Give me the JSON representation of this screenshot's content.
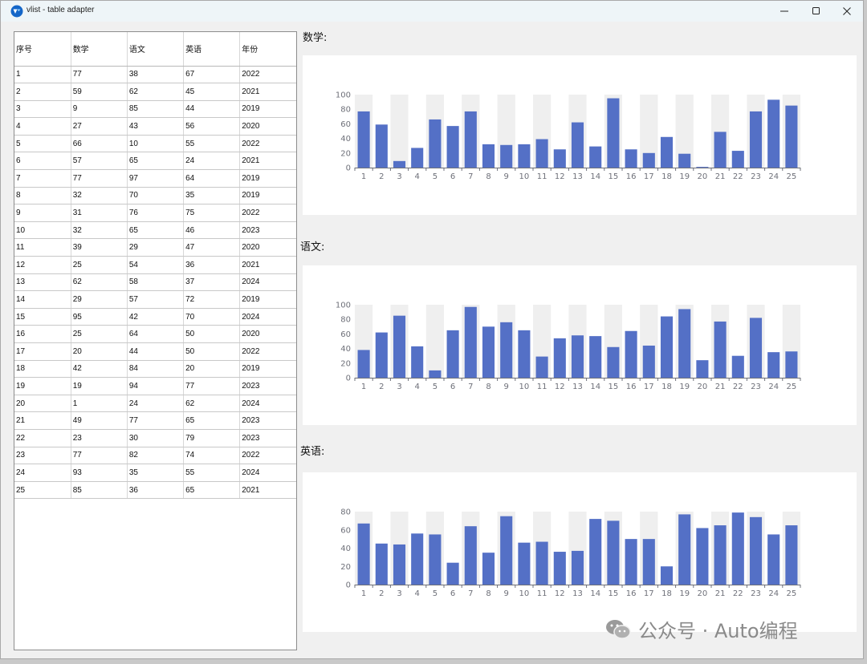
{
  "window": {
    "title": "vlist - table adapter"
  },
  "table": {
    "headers": [
      "序号",
      "数学",
      "语文",
      "英语",
      "年份"
    ],
    "rows": [
      [
        "1",
        "77",
        "38",
        "67",
        "2022"
      ],
      [
        "2",
        "59",
        "62",
        "45",
        "2021"
      ],
      [
        "3",
        "9",
        "85",
        "44",
        "2019"
      ],
      [
        "4",
        "27",
        "43",
        "56",
        "2020"
      ],
      [
        "5",
        "66",
        "10",
        "55",
        "2022"
      ],
      [
        "6",
        "57",
        "65",
        "24",
        "2021"
      ],
      [
        "7",
        "77",
        "97",
        "64",
        "2019"
      ],
      [
        "8",
        "32",
        "70",
        "35",
        "2019"
      ],
      [
        "9",
        "31",
        "76",
        "75",
        "2022"
      ],
      [
        "10",
        "32",
        "65",
        "46",
        "2023"
      ],
      [
        "11",
        "39",
        "29",
        "47",
        "2020"
      ],
      [
        "12",
        "25",
        "54",
        "36",
        "2021"
      ],
      [
        "13",
        "62",
        "58",
        "37",
        "2024"
      ],
      [
        "14",
        "29",
        "57",
        "72",
        "2019"
      ],
      [
        "15",
        "95",
        "42",
        "70",
        "2024"
      ],
      [
        "16",
        "25",
        "64",
        "50",
        "2020"
      ],
      [
        "17",
        "20",
        "44",
        "50",
        "2022"
      ],
      [
        "18",
        "42",
        "84",
        "20",
        "2019"
      ],
      [
        "19",
        "19",
        "94",
        "77",
        "2023"
      ],
      [
        "20",
        "1",
        "24",
        "62",
        "2024"
      ],
      [
        "21",
        "49",
        "77",
        "65",
        "2023"
      ],
      [
        "22",
        "23",
        "30",
        "79",
        "2023"
      ],
      [
        "23",
        "77",
        "82",
        "74",
        "2022"
      ],
      [
        "24",
        "93",
        "35",
        "55",
        "2024"
      ],
      [
        "25",
        "85",
        "36",
        "65",
        "2021"
      ]
    ]
  },
  "charts": {
    "math_label": "数学:",
    "chinese_label": "语文:",
    "english_label": "英语:"
  },
  "watermark": {
    "text": "公众号 · Auto编程"
  },
  "colors": {
    "bar": "#5470c6",
    "band": "#efefef",
    "axis": "#6e7079"
  },
  "chart_data": [
    {
      "type": "bar",
      "categories": [
        "1",
        "2",
        "3",
        "4",
        "5",
        "6",
        "7",
        "8",
        "9",
        "10",
        "11",
        "12",
        "13",
        "14",
        "15",
        "16",
        "17",
        "18",
        "19",
        "20",
        "21",
        "22",
        "23",
        "24",
        "25"
      ],
      "values": [
        77,
        59,
        9,
        27,
        66,
        57,
        77,
        32,
        31,
        32,
        39,
        25,
        62,
        29,
        95,
        25,
        20,
        42,
        19,
        1,
        49,
        23,
        77,
        93,
        85
      ],
      "ylim": [
        0,
        100
      ],
      "yticks": [
        0,
        20,
        40,
        60,
        80,
        100
      ]
    },
    {
      "type": "bar",
      "categories": [
        "1",
        "2",
        "3",
        "4",
        "5",
        "6",
        "7",
        "8",
        "9",
        "10",
        "11",
        "12",
        "13",
        "14",
        "15",
        "16",
        "17",
        "18",
        "19",
        "20",
        "21",
        "22",
        "23",
        "24",
        "25"
      ],
      "values": [
        38,
        62,
        85,
        43,
        10,
        65,
        97,
        70,
        76,
        65,
        29,
        54,
        58,
        57,
        42,
        64,
        44,
        84,
        94,
        24,
        77,
        30,
        82,
        35,
        36
      ],
      "ylim": [
        0,
        100
      ],
      "yticks": [
        0,
        20,
        40,
        60,
        80,
        100
      ]
    },
    {
      "type": "bar",
      "categories": [
        "1",
        "2",
        "3",
        "4",
        "5",
        "6",
        "7",
        "8",
        "9",
        "10",
        "11",
        "12",
        "13",
        "14",
        "15",
        "16",
        "17",
        "18",
        "19",
        "20",
        "21",
        "22",
        "23",
        "24",
        "25"
      ],
      "values": [
        67,
        45,
        44,
        56,
        55,
        24,
        64,
        35,
        75,
        46,
        47,
        36,
        37,
        72,
        70,
        50,
        50,
        20,
        77,
        62,
        65,
        79,
        74,
        55,
        65
      ],
      "ylim": [
        0,
        80
      ],
      "yticks": [
        0,
        20,
        40,
        60,
        80
      ]
    }
  ]
}
